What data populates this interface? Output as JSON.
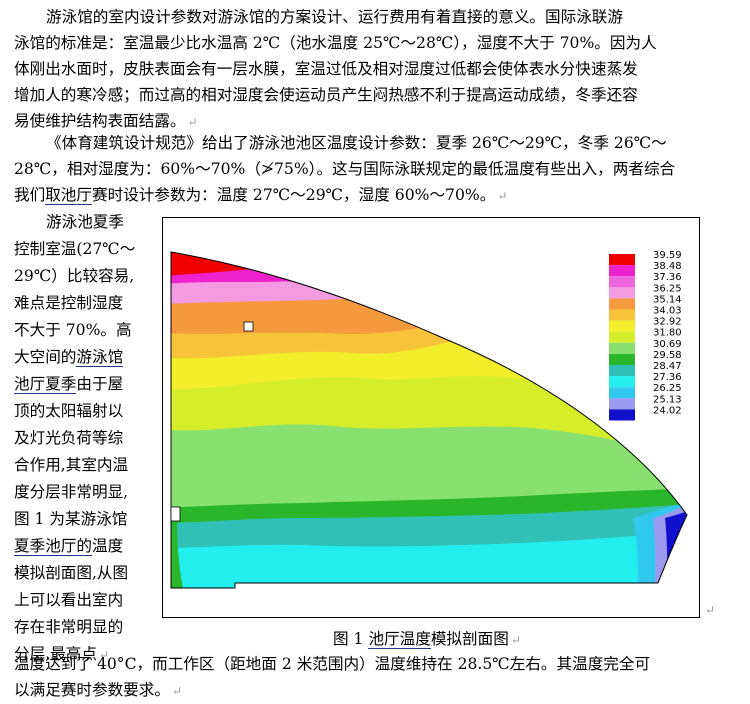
{
  "paragraph1": {
    "lines": [
      "游泳馆的室内设计参数对游泳馆的方案设计、运行费用有着直接的意义。国际泳联游",
      "泳馆的标准是：室温最少比水温高 2℃（池水温度 25℃～28℃），湿度不大于 70%。因为人",
      "体刚出水面时，皮肤表面会有一层水膜，室温过低及相对湿度过低都会使体表水分快速蒸发",
      "增加人的寒冷感；而过高的相对湿度会使运动员产生闷热感不利于提高运动成绩，冬季还容",
      "易使维护结构表面结露。"
    ]
  },
  "paragraph2": {
    "line1": "《体育建筑设计规范》给出了游泳池池区温度设计参数：夏季 26℃～29℃，冬季 26℃～",
    "line2": "28℃，相对湿度为：60%～70%（≯75%）。这与国际泳联规定的最低温度有些出入，两者综合",
    "line3_pre": "我们",
    "line3_link": "取池厅",
    "line3_post": "赛时设计参数为：温度 27℃～29℃，湿度 60%～70%。"
  },
  "left_column": {
    "lines_plain": [
      "游泳池夏季",
      "控制室温(27℃～",
      "29℃）比较容易,",
      "难点是控制湿度",
      "不大于 70%。高",
      "大空间的"
    ],
    "link1": "游泳馆",
    "link2": "池厅夏季",
    "after_link2": "由于屋",
    "lines_plain2": [
      "顶的太阳辐射以",
      "及灯光负荷等综",
      "合作用,其室内温",
      "度分层非常明显,",
      "图 1 为某游泳馆"
    ],
    "link3": "夏季池厅的",
    "after_link3": "温度",
    "lines_plain3": [
      "模拟剖面图,从图",
      "上可以看出室内",
      "存在非常明显的",
      "分层,最高点"
    ]
  },
  "paragraph_marker": "↵",
  "figure": {
    "caption_pre": "图 1 ",
    "caption_link": "池厅温度",
    "caption_post": "模拟剖面图",
    "legend": [
      {
        "value": "39.59",
        "color": "#ee0000"
      },
      {
        "value": "38.48",
        "color": "#ee22cc"
      },
      {
        "value": "37.36",
        "color": "#ee66dd"
      },
      {
        "value": "36.25",
        "color": "#f39ae0"
      },
      {
        "value": "35.14",
        "color": "#f49a3c"
      },
      {
        "value": "34.03",
        "color": "#f8c23a"
      },
      {
        "value": "32.92",
        "color": "#f2ee2a"
      },
      {
        "value": "31.80",
        "color": "#d6ee2a"
      },
      {
        "value": "30.69",
        "color": "#88e070"
      },
      {
        "value": "29.58",
        "color": "#2ab62a"
      },
      {
        "value": "28.47",
        "color": "#30c0b8"
      },
      {
        "value": "27.36",
        "color": "#22eeee"
      },
      {
        "value": "26.25",
        "color": "#30c8ee"
      },
      {
        "value": "25.13",
        "color": "#9a9aee"
      },
      {
        "value": "24.02",
        "color": "#1010cc"
      }
    ]
  },
  "bottom": {
    "line1_pre": "温度",
    "line1_post": "达到了 40°C，而工作区（距地面 2 米范围内）温度维持在 28.5℃左右。其温度完全可",
    "line2": "以满足赛时参数要求。"
  }
}
